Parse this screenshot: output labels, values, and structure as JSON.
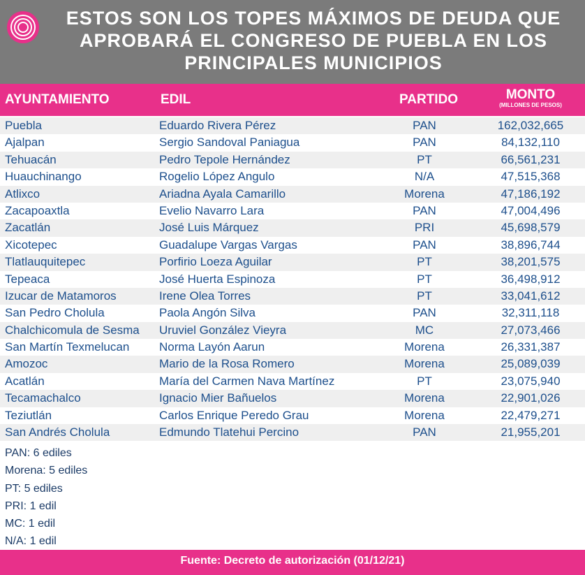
{
  "header": {
    "title_lines": [
      "ESTOS SON LOS TOPES MÁXIMOS DE DEUDA QUE",
      "APROBARÁ EL CONGRESO DE PUEBLA EN LOS",
      "PRINCIPALES MUNICIPIOS"
    ]
  },
  "table": {
    "columns": [
      "AYUNTAMIENTO",
      "EDIL",
      "PARTIDO",
      "MONTO"
    ],
    "monto_unit": "(MILLONES DE PESOS)",
    "rows": [
      [
        "Puebla",
        "Eduardo Rivera Pérez",
        "PAN",
        "162,032,665"
      ],
      [
        "Ajalpan",
        "Sergio Sandoval Paniagua",
        "PAN",
        "84,132,110"
      ],
      [
        "Tehuacán",
        "Pedro Tepole Hernández",
        "PT",
        "66,561,231"
      ],
      [
        "Huauchinango",
        "Rogelio López Angulo",
        "N/A",
        "47,515,368"
      ],
      [
        "Atlixco",
        "Ariadna Ayala Camarillo",
        "Morena",
        "47,186,192"
      ],
      [
        "Zacapoaxtla",
        "Evelio Navarro Lara",
        "PAN",
        "47,004,496"
      ],
      [
        "Zacatlán",
        "José Luis Márquez",
        "PRI",
        "45,698,579"
      ],
      [
        "Xicotepec",
        "Guadalupe Vargas Vargas",
        "PAN",
        "38,896,744"
      ],
      [
        "Tlatlauquitepec",
        "Porfirio Loeza Aguilar",
        "PT",
        "38,201,575"
      ],
      [
        "Tepeaca",
        "José Huerta Espinoza",
        "PT",
        "36,498,912"
      ],
      [
        "Izucar de Matamoros",
        "Irene Olea Torres",
        "PT",
        "33,041,612"
      ],
      [
        "San Pedro Cholula",
        "Paola Angón Silva",
        "PAN",
        "32,311,118"
      ],
      [
        "Chalchicomula de Sesma",
        "Uruviel González Vieyra",
        "MC",
        "27,073,466"
      ],
      [
        "San Martín Texmelucan",
        "Norma Layón Aarun",
        "Morena",
        "26,331,387"
      ],
      [
        "Amozoc",
        "Mario de la Rosa Romero",
        "Morena",
        "25,089,039"
      ],
      [
        "Acatlán",
        "María del Carmen Nava Martínez",
        "PT",
        "23,075,940"
      ],
      [
        "Tecamachalco",
        "Ignacio Mier Bañuelos",
        "Morena",
        "22,901,026"
      ],
      [
        "Teziutlán",
        "Carlos Enrique Peredo Grau",
        "Morena",
        "22,479,271"
      ],
      [
        "San Andrés Cholula",
        "Edmundo Tlatehui Percino",
        "PAN",
        "21,955,201"
      ]
    ]
  },
  "summary": [
    "PAN: 6 ediles",
    "Morena: 5 ediles",
    "PT: 5 ediles",
    "PRI: 1 edil",
    "MC: 1 edil",
    "N/A: 1 edil"
  ],
  "footer": {
    "source": "Fuente: Decreto de autorización (01/12/21)"
  }
}
